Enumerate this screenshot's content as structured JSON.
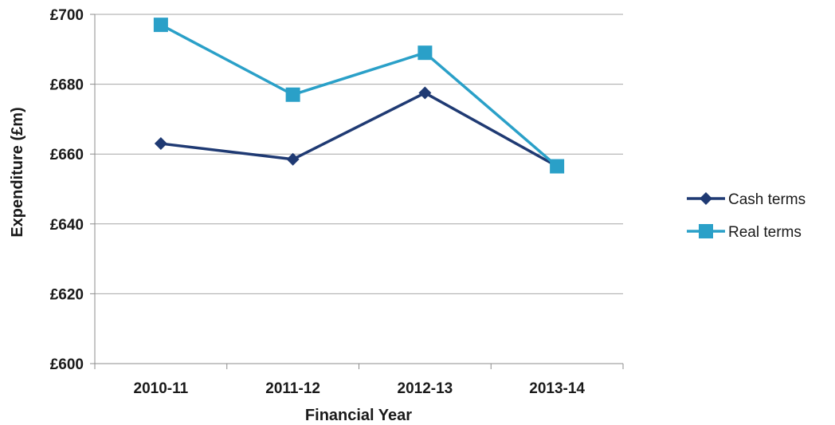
{
  "chart_data": {
    "type": "line",
    "title": "",
    "xlabel": "Financial Year",
    "ylabel": "Expenditure (£m)",
    "categories": [
      "2010-11",
      "2011-12",
      "2012-13",
      "2013-14"
    ],
    "yticks": [
      "£600",
      "£620",
      "£640",
      "£660",
      "£680",
      "£700"
    ],
    "ylim": [
      600,
      700
    ],
    "grid": true,
    "legend_position": "right",
    "series": [
      {
        "name": "Cash terms",
        "values": [
          663,
          658.5,
          677.5,
          656.5
        ],
        "color": "#1f3a73",
        "marker": "diamond"
      },
      {
        "name": "Real terms",
        "values": [
          697,
          677,
          689,
          656.5
        ],
        "color": "#2aa0c8",
        "marker": "square"
      }
    ]
  }
}
